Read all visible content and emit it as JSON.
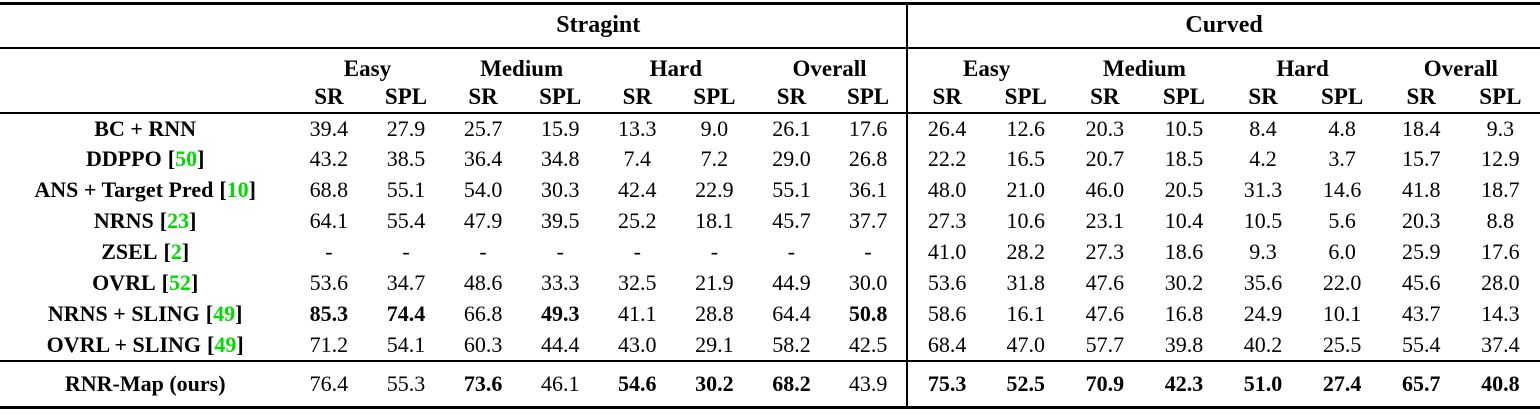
{
  "colors": {
    "citation_green": "#00DC00",
    "text": "#000000",
    "background": "#FFFFFF"
  },
  "table": {
    "column_groups": [
      {
        "label": "Stragint"
      },
      {
        "label": "Curved"
      }
    ],
    "difficulty_headers": [
      "Easy",
      "Medium",
      "Hard",
      "Overall"
    ],
    "metric_headers": [
      "SR",
      "SPL"
    ],
    "citation_brackets": [
      "[",
      "]"
    ],
    "rows": [
      {
        "method": "BC + RNN",
        "cite": null,
        "values": [
          "39.4",
          "27.9",
          "25.7",
          "15.9",
          "13.3",
          "9.0",
          "26.1",
          "17.6",
          "26.4",
          "12.6",
          "20.3",
          "10.5",
          "8.4",
          "4.8",
          "18.4",
          "9.3"
        ],
        "bold": []
      },
      {
        "method": "DDPPO",
        "cite": "50",
        "values": [
          "43.2",
          "38.5",
          "36.4",
          "34.8",
          "7.4",
          "7.2",
          "29.0",
          "26.8",
          "22.2",
          "16.5",
          "20.7",
          "18.5",
          "4.2",
          "3.7",
          "15.7",
          "12.9"
        ],
        "bold": []
      },
      {
        "method": "ANS + Target Pred",
        "cite": "10",
        "values": [
          "68.8",
          "55.1",
          "54.0",
          "30.3",
          "42.4",
          "22.9",
          "55.1",
          "36.1",
          "48.0",
          "21.0",
          "46.0",
          "20.5",
          "31.3",
          "14.6",
          "41.8",
          "18.7"
        ],
        "bold": []
      },
      {
        "method": "NRNS",
        "cite": "23",
        "values": [
          "64.1",
          "55.4",
          "47.9",
          "39.5",
          "25.2",
          "18.1",
          "45.7",
          "37.7",
          "27.3",
          "10.6",
          "23.1",
          "10.4",
          "10.5",
          "5.6",
          "20.3",
          "8.8"
        ],
        "bold": []
      },
      {
        "method": "ZSEL",
        "cite": "2",
        "values": [
          "-",
          "-",
          "-",
          "-",
          "-",
          "-",
          "-",
          "-",
          "41.0",
          "28.2",
          "27.3",
          "18.6",
          "9.3",
          "6.0",
          "25.9",
          "17.6"
        ],
        "bold": []
      },
      {
        "method": "OVRL",
        "cite": "52",
        "values": [
          "53.6",
          "34.7",
          "48.6",
          "33.3",
          "32.5",
          "21.9",
          "44.9",
          "30.0",
          "53.6",
          "31.8",
          "47.6",
          "30.2",
          "35.6",
          "22.0",
          "45.6",
          "28.0"
        ],
        "bold": []
      },
      {
        "method": "NRNS + SLING",
        "cite": "49",
        "values": [
          "85.3",
          "74.4",
          "66.8",
          "49.3",
          "41.1",
          "28.8",
          "64.4",
          "50.8",
          "58.6",
          "16.1",
          "47.6",
          "16.8",
          "24.9",
          "10.1",
          "43.7",
          "14.3"
        ],
        "bold": [
          0,
          1,
          3,
          7
        ]
      },
      {
        "method": "OVRL + SLING",
        "cite": "49",
        "values": [
          "71.2",
          "54.1",
          "60.3",
          "44.4",
          "43.0",
          "29.1",
          "58.2",
          "42.5",
          "68.4",
          "47.0",
          "57.7",
          "39.8",
          "40.2",
          "25.5",
          "55.4",
          "37.4"
        ],
        "bold": []
      }
    ],
    "highlight_row": {
      "method": "RNR-Map (ours)",
      "cite": null,
      "values": [
        "76.4",
        "55.3",
        "73.6",
        "46.1",
        "54.6",
        "30.2",
        "68.2",
        "43.9",
        "75.3",
        "52.5",
        "70.9",
        "42.3",
        "51.0",
        "27.4",
        "65.7",
        "40.8"
      ],
      "bold": [
        2,
        4,
        5,
        6,
        8,
        9,
        10,
        11,
        12,
        13,
        14,
        15
      ]
    }
  }
}
